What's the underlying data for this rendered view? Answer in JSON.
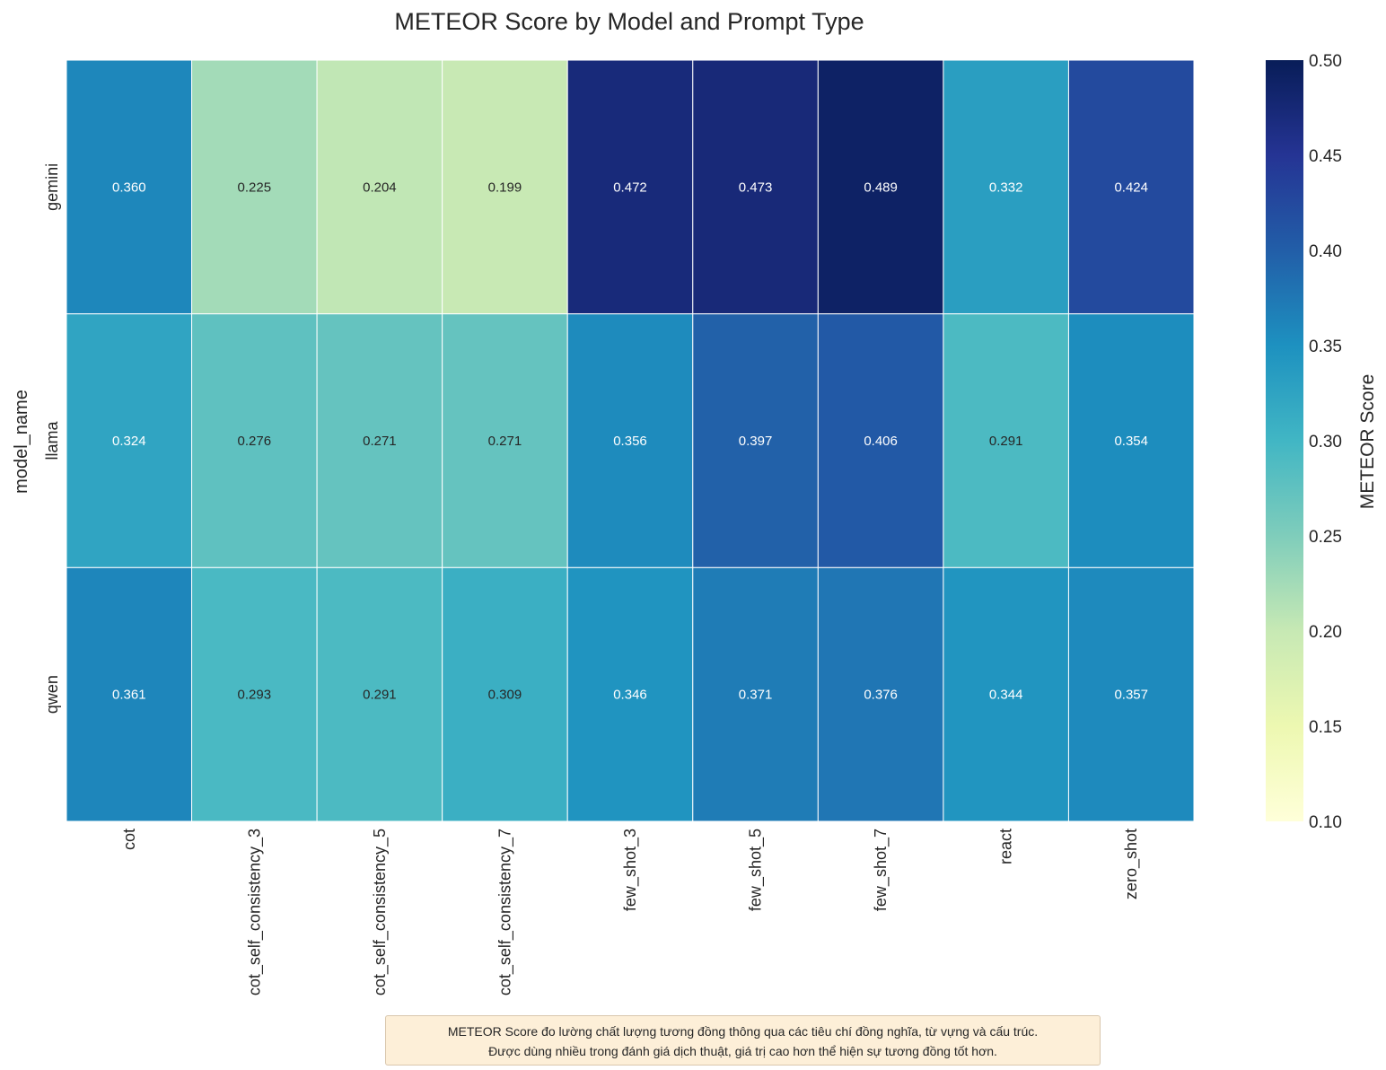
{
  "chart_data": {
    "type": "heatmap",
    "title": "METEOR Score by Model and Prompt Type",
    "xlabel": "prompt_type",
    "ylabel": "model_name",
    "x_categories": [
      "cot",
      "cot_self_consistency_3",
      "cot_self_consistency_5",
      "cot_self_consistency_7",
      "few_shot_3",
      "few_shot_5",
      "few_shot_7",
      "react",
      "zero_shot"
    ],
    "y_categories": [
      "gemini",
      "llama",
      "qwen"
    ],
    "values": [
      [
        0.36,
        0.225,
        0.204,
        0.199,
        0.472,
        0.473,
        0.489,
        0.332,
        0.424
      ],
      [
        0.324,
        0.276,
        0.271,
        0.271,
        0.356,
        0.397,
        0.406,
        0.291,
        0.354
      ],
      [
        0.361,
        0.293,
        0.291,
        0.309,
        0.346,
        0.371,
        0.376,
        0.344,
        0.357
      ]
    ],
    "value_labels": [
      [
        "0.360",
        "0.225",
        "0.204",
        "0.199",
        "0.472",
        "0.473",
        "0.489",
        "0.332",
        "0.424"
      ],
      [
        "0.324",
        "0.276",
        "0.271",
        "0.271",
        "0.356",
        "0.397",
        "0.406",
        "0.291",
        "0.354"
      ],
      [
        "0.361",
        "0.293",
        "0.291",
        "0.309",
        "0.346",
        "0.371",
        "0.376",
        "0.344",
        "0.357"
      ]
    ],
    "colorbar": {
      "label": "METEOR Score",
      "range": [
        0.1,
        0.5
      ],
      "ticks": [
        "0.10",
        "0.15",
        "0.20",
        "0.25",
        "0.30",
        "0.35",
        "0.40",
        "0.45",
        "0.50"
      ],
      "colormap": "YlGnBu",
      "stops": [
        "#ffffd9",
        "#edf8b1",
        "#c7e9b4",
        "#7fcdbb",
        "#41b6c4",
        "#1d91c0",
        "#225ea8",
        "#253494",
        "#081d58"
      ]
    }
  },
  "note": {
    "line1": "METEOR Score đo lường chất lượng tương đồng thông qua các tiêu chí đồng nghĩa, từ vựng và cấu trúc.",
    "line2": "Được dùng nhiều trong đánh giá dịch thuật, giá trị cao hơn thể hiện sự tương đồng tốt hơn."
  }
}
